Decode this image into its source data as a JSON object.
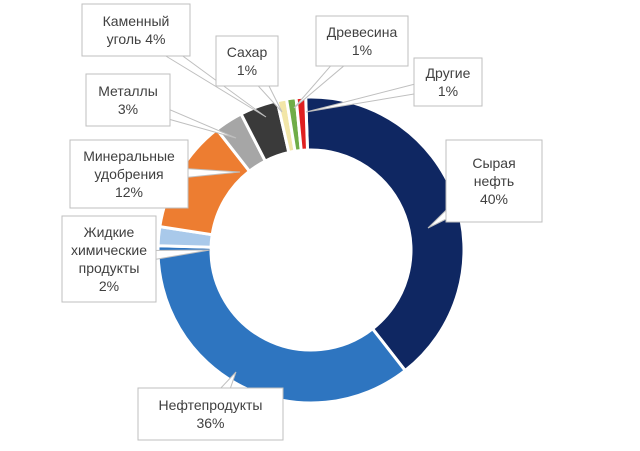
{
  "chart_data": {
    "type": "pie",
    "variant": "donut",
    "legend": "none",
    "slices": [
      {
        "label_lines": [
          "Сырая",
          "нефть",
          "40%"
        ],
        "value": 40,
        "color": "#0f2762"
      },
      {
        "label_lines": [
          "Нефтепродукты",
          "36%"
        ],
        "value": 36,
        "color": "#2e75c0"
      },
      {
        "label_lines": [
          "Жидкие",
          "химические",
          "продукты",
          "2%"
        ],
        "value": 2,
        "color": "#a9c9ea"
      },
      {
        "label_lines": [
          "Минеральные",
          "удобрения",
          "12%"
        ],
        "value": 12,
        "color": "#ed7d31"
      },
      {
        "label_lines": [
          "Металлы",
          "3%"
        ],
        "value": 3,
        "color": "#a6a6a6"
      },
      {
        "label_lines": [
          "Каменный",
          "уголь 4%"
        ],
        "value": 4,
        "color": "#3a3a3a"
      },
      {
        "label_lines": [
          "Сахар",
          "1%"
        ],
        "value": 1,
        "color": "#f2e6a8"
      },
      {
        "label_lines": [
          "Древесина",
          "1%"
        ],
        "value": 1,
        "color": "#70ad47"
      },
      {
        "label_lines": [
          "Другие",
          "1%"
        ],
        "value": 1,
        "color": "#e02020"
      }
    ]
  }
}
